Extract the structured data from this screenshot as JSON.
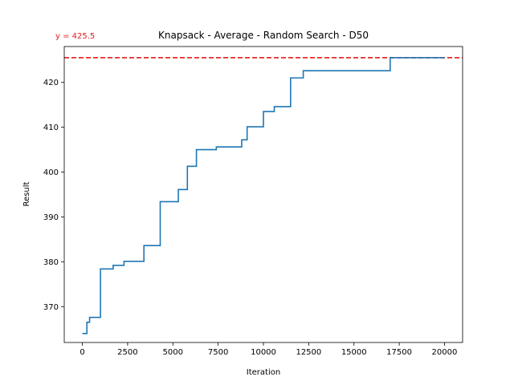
{
  "chart_data": {
    "type": "line",
    "title": "Knapsack - Average - Random Search - D50",
    "xlabel": "Iteration",
    "ylabel": "Result",
    "xlim": [
      -1000,
      21000
    ],
    "ylim": [
      362,
      428
    ],
    "xticks": [
      0,
      2500,
      5000,
      7500,
      10000,
      12500,
      15000,
      17500,
      20000
    ],
    "xtick_labels": [
      "0",
      "2500",
      "5000",
      "7500",
      "10000",
      "12500",
      "15000",
      "17500",
      "20000"
    ],
    "yticks": [
      370,
      380,
      390,
      400,
      410,
      420
    ],
    "ytick_labels": [
      "370",
      "380",
      "390",
      "400",
      "410",
      "420"
    ],
    "grid": false,
    "series": [
      {
        "color": "#1f77b4",
        "step": true,
        "x": [
          0,
          250,
          400,
          600,
          1000,
          1100,
          1700,
          2300,
          3400,
          4300,
          5300,
          5800,
          6300,
          7400,
          8800,
          9100,
          10000,
          10600,
          11500,
          12200,
          17000,
          20000
        ],
        "y": [
          364.0,
          366.5,
          367.6,
          367.6,
          378.4,
          378.4,
          379.2,
          380.1,
          383.6,
          393.4,
          396.1,
          401.3,
          405.0,
          405.6,
          407.2,
          410.1,
          413.5,
          414.6,
          421.0,
          422.6,
          425.5,
          425.5
        ]
      }
    ],
    "reference_lines": [
      {
        "axis": "y",
        "value": 425.5,
        "label": "y = 425.5",
        "color": "#e31a1c",
        "style": "dashed"
      }
    ]
  }
}
